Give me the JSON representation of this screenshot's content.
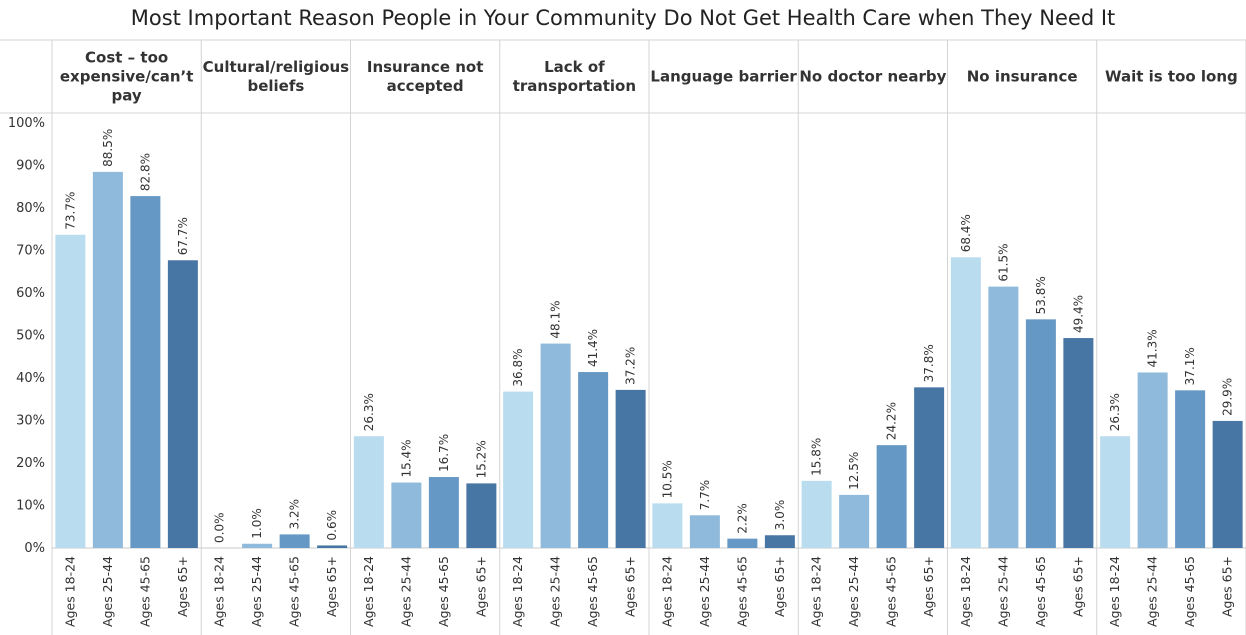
{
  "chart_data": {
    "type": "bar",
    "title": "Most Important Reason People in Your Community Do Not Get Health Care when They Need It",
    "panels": [
      {
        "label": "Cost – too expensive/can’t pay",
        "lines": [
          "Cost – too",
          "expensive/can’t",
          "pay"
        ]
      },
      {
        "label": "Cultural/religious beliefs",
        "lines": [
          "Cultural/religious",
          "beliefs"
        ]
      },
      {
        "label": "Insurance not accepted",
        "lines": [
          "Insurance not",
          "accepted"
        ]
      },
      {
        "label": "Lack of transportation",
        "lines": [
          "Lack of",
          "transportation"
        ]
      },
      {
        "label": "Language barrier",
        "lines": [
          "Language barrier"
        ]
      },
      {
        "label": "No doctor nearby",
        "lines": [
          "No doctor nearby"
        ]
      },
      {
        "label": "No insurance",
        "lines": [
          "No insurance"
        ]
      },
      {
        "label": "Wait is too long",
        "lines": [
          "Wait is too long"
        ]
      }
    ],
    "categories": [
      "Ages 18-24",
      "Ages 25-44",
      "Ages 45-65",
      "Ages 65+"
    ],
    "values": [
      [
        73.7,
        88.5,
        82.8,
        67.7
      ],
      [
        0.0,
        1.0,
        3.2,
        0.6
      ],
      [
        26.3,
        15.4,
        16.7,
        15.2
      ],
      [
        36.8,
        48.1,
        41.4,
        37.2
      ],
      [
        10.5,
        7.7,
        2.2,
        3.0
      ],
      [
        15.8,
        12.5,
        24.2,
        37.8
      ],
      [
        68.4,
        61.5,
        53.8,
        49.4
      ],
      [
        26.3,
        41.3,
        37.1,
        29.9
      ]
    ],
    "value_labels": [
      [
        "73.7%",
        "88.5%",
        "82.8%",
        "67.7%"
      ],
      [
        "0.0%",
        "1.0%",
        "3.2%",
        "0.6%"
      ],
      [
        "26.3%",
        "15.4%",
        "16.7%",
        "15.2%"
      ],
      [
        "36.8%",
        "48.1%",
        "41.4%",
        "37.2%"
      ],
      [
        "10.5%",
        "7.7%",
        "2.2%",
        "3.0%"
      ],
      [
        "15.8%",
        "12.5%",
        "24.2%",
        "37.8%"
      ],
      [
        "68.4%",
        "61.5%",
        "53.8%",
        "49.4%"
      ],
      [
        "26.3%",
        "41.3%",
        "37.1%",
        "29.9%"
      ]
    ],
    "yticks": [
      0,
      10,
      20,
      30,
      40,
      50,
      60,
      70,
      80,
      90,
      100
    ],
    "ytick_labels": [
      "0%",
      "10%",
      "20%",
      "30%",
      "40%",
      "50%",
      "60%",
      "70%",
      "80%",
      "90%",
      "100%"
    ],
    "ylim": [
      0,
      100
    ],
    "xlabel": "",
    "ylabel": "",
    "colors": [
      "#b9dcef",
      "#8fbadb",
      "#6598c4",
      "#4775a4"
    ],
    "grid": false
  }
}
